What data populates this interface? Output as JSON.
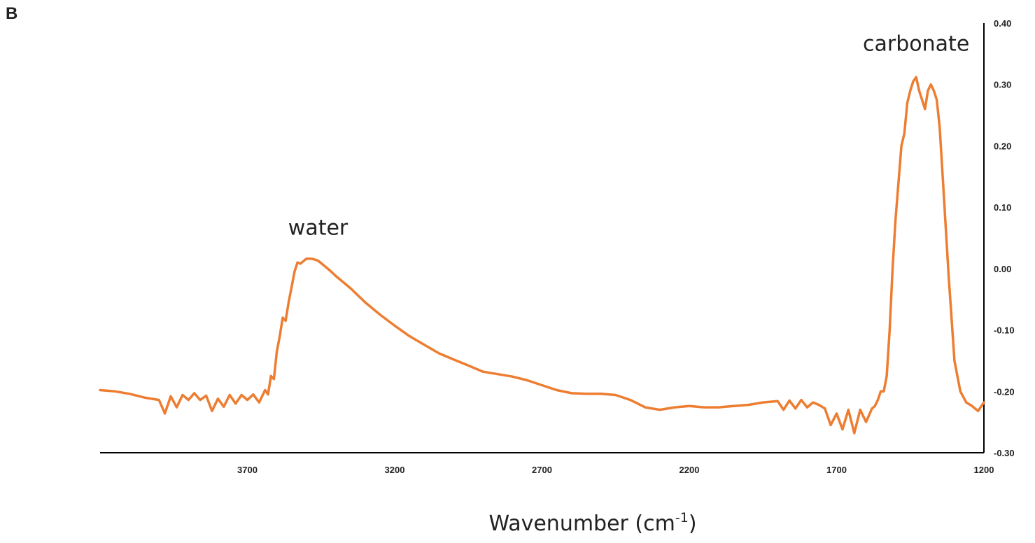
{
  "panel_label": "B",
  "colors": {
    "series": "#ED7D31",
    "axis": "#000000"
  },
  "chart_data": {
    "type": "line",
    "title": "",
    "xlabel_main": "Wavenumber (cm",
    "xlabel_sup": "-1",
    "xlabel_close": ")",
    "ylabel": "",
    "xlim": [
      4200,
      1200
    ],
    "ylim": [
      -0.3,
      0.4
    ],
    "x_reversed": true,
    "y_axis_position": "right",
    "grid": false,
    "legend": "none",
    "xticks": [
      3700,
      3200,
      2700,
      2200,
      1700,
      1200
    ],
    "xtick_labels": [
      "3700",
      "3200",
      "2700",
      "2200",
      "1700",
      "1200"
    ],
    "yticks": [
      0.4,
      0.3,
      0.2,
      0.1,
      0.0,
      -0.1,
      -0.2,
      -0.3
    ],
    "ytick_labels": [
      "0.40",
      "0.30",
      "0.20",
      "0.10",
      "0.00",
      "-0.10",
      "-0.20",
      "-0.30"
    ],
    "annotations": [
      {
        "text": "water",
        "x": 3460,
        "y": 0.055
      },
      {
        "text": "carbonate",
        "x": 1430,
        "y": 0.355
      }
    ],
    "series": [
      {
        "x": [
          4200,
          4150,
          4100,
          4050,
          4000,
          3980,
          3960,
          3940,
          3920,
          3900,
          3880,
          3860,
          3840,
          3820,
          3800,
          3780,
          3760,
          3740,
          3720,
          3700,
          3680,
          3660,
          3640,
          3630,
          3620,
          3610,
          3600,
          3590,
          3580,
          3570,
          3560,
          3550,
          3540,
          3530,
          3520,
          3500,
          3480,
          3460,
          3440,
          3420,
          3400,
          3350,
          3300,
          3250,
          3200,
          3150,
          3100,
          3050,
          3000,
          2950,
          2900,
          2850,
          2800,
          2750,
          2700,
          2650,
          2600,
          2550,
          2500,
          2450,
          2400,
          2350,
          2300,
          2250,
          2200,
          2150,
          2100,
          2050,
          2000,
          1950,
          1900,
          1880,
          1860,
          1840,
          1820,
          1800,
          1780,
          1760,
          1740,
          1720,
          1700,
          1680,
          1660,
          1640,
          1620,
          1600,
          1580,
          1570,
          1560,
          1550,
          1540,
          1530,
          1520,
          1510,
          1500,
          1490,
          1480,
          1470,
          1460,
          1450,
          1440,
          1430,
          1420,
          1410,
          1400,
          1390,
          1380,
          1370,
          1360,
          1350,
          1340,
          1330,
          1320,
          1310,
          1300,
          1280,
          1260,
          1240,
          1220,
          1200
        ],
        "y": [
          -0.198,
          -0.2,
          -0.204,
          -0.21,
          -0.214,
          -0.236,
          -0.208,
          -0.226,
          -0.206,
          -0.214,
          -0.203,
          -0.214,
          -0.207,
          -0.232,
          -0.212,
          -0.225,
          -0.206,
          -0.22,
          -0.206,
          -0.214,
          -0.205,
          -0.218,
          -0.198,
          -0.205,
          -0.175,
          -0.18,
          -0.135,
          -0.11,
          -0.08,
          -0.085,
          -0.055,
          -0.03,
          -0.005,
          0.01,
          0.008,
          0.016,
          0.016,
          0.013,
          0.005,
          -0.003,
          -0.012,
          -0.032,
          -0.055,
          -0.075,
          -0.093,
          -0.11,
          -0.124,
          -0.138,
          -0.148,
          -0.158,
          -0.168,
          -0.172,
          -0.176,
          -0.182,
          -0.19,
          -0.198,
          -0.203,
          -0.204,
          -0.204,
          -0.206,
          -0.214,
          -0.226,
          -0.23,
          -0.226,
          -0.224,
          -0.226,
          -0.226,
          -0.224,
          -0.222,
          -0.218,
          -0.216,
          -0.23,
          -0.215,
          -0.228,
          -0.214,
          -0.226,
          -0.218,
          -0.222,
          -0.228,
          -0.255,
          -0.236,
          -0.262,
          -0.23,
          -0.268,
          -0.23,
          -0.25,
          -0.228,
          -0.224,
          -0.214,
          -0.2,
          -0.2,
          -0.175,
          -0.1,
          0.0,
          0.08,
          0.14,
          0.2,
          0.22,
          0.27,
          0.29,
          0.305,
          0.312,
          0.29,
          0.275,
          0.26,
          0.29,
          0.3,
          0.29,
          0.275,
          0.23,
          0.15,
          0.07,
          -0.01,
          -0.08,
          -0.15,
          -0.2,
          -0.218,
          -0.224,
          -0.232,
          -0.218
        ]
      }
    ]
  }
}
